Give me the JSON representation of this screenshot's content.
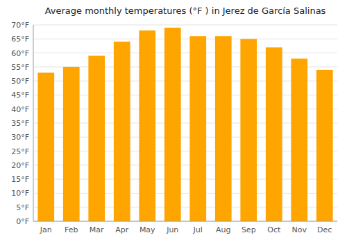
{
  "chart_data": {
    "type": "bar",
    "title": "Average monthly temperatures (°F ) in Jerez de García Salinas",
    "categories": [
      "Jan",
      "Feb",
      "Mar",
      "Apr",
      "May",
      "Jun",
      "Jul",
      "Aug",
      "Sep",
      "Oct",
      "Nov",
      "Dec"
    ],
    "values": [
      53,
      55,
      59,
      64,
      68,
      69,
      66,
      66,
      65,
      62,
      58,
      54
    ],
    "color": "#FFA500",
    "ylim": [
      0,
      70
    ],
    "yticks": [
      {
        "value": 0,
        "label": "0°F"
      },
      {
        "value": 5,
        "label": "5°F"
      },
      {
        "value": 10,
        "label": "10°F"
      },
      {
        "value": 15,
        "label": "15°F"
      },
      {
        "value": 20,
        "label": "20°F"
      },
      {
        "value": 25,
        "label": "25°F"
      },
      {
        "value": 30,
        "label": "30°F"
      },
      {
        "value": 35,
        "label": "35°F"
      },
      {
        "value": 40,
        "label": "40°F"
      },
      {
        "value": 45,
        "label": "45°F"
      },
      {
        "value": 50,
        "label": "50°F"
      },
      {
        "value": 55,
        "label": "55°F"
      },
      {
        "value": 60,
        "label": "60°F"
      },
      {
        "value": 65,
        "label": "65°F"
      },
      {
        "value": 70,
        "label": "70°F"
      }
    ],
    "grid": true
  }
}
